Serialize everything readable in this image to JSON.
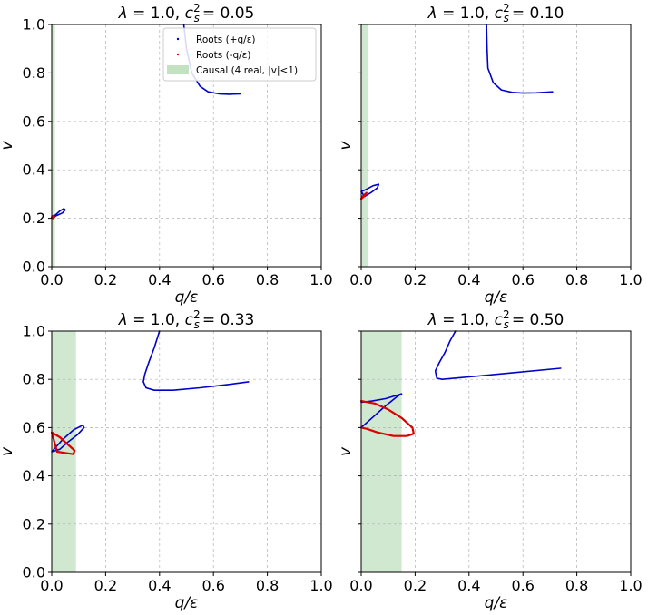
{
  "chart_data": [
    {
      "type": "line",
      "title": "λ = 1.0, c_s² = 0.05",
      "title_parts": {
        "lambda": "λ = 1.0,",
        "cs": "c",
        "sub": "s",
        "sup": "2",
        "value": "= 0.05"
      },
      "xlabel": "q/ε",
      "ylabel": "v",
      "xlim": [
        0,
        1.0
      ],
      "ylim": [
        0,
        1.0
      ],
      "xticks": [
        "0.0",
        "0.2",
        "0.4",
        "0.6",
        "0.8",
        "1.0"
      ],
      "yticks": [
        "0.0",
        "0.2",
        "0.4",
        "0.6",
        "0.8",
        "1.0"
      ],
      "show_yticklabels": true,
      "grid": true,
      "causal_region": [
        0,
        0.012
      ],
      "legend": {
        "placement": "top-center",
        "entries": [
          "Roots (+q/ε)",
          "Roots (-q/ε)",
          "Causal (4 real, |v|<1)"
        ]
      },
      "series": [
        {
          "name": "Roots (+q/ε)",
          "color": "#0000cc",
          "x": [
            0.49,
            0.5,
            0.52,
            0.55,
            0.58,
            0.62,
            0.66,
            0.7
          ],
          "y": [
            1.0,
            0.9,
            0.8,
            0.745,
            0.722,
            0.714,
            0.712,
            0.714
          ]
        },
        {
          "name": "Roots (+q/ε)",
          "color": "#0000cc",
          "x": [
            0.0,
            0.01,
            0.03,
            0.045,
            0.05,
            0.04,
            0.02,
            0.005,
            0.0
          ],
          "y": [
            0.205,
            0.21,
            0.23,
            0.24,
            0.235,
            0.222,
            0.212,
            0.205,
            0.205
          ]
        },
        {
          "name": "Roots (-q/ε)",
          "color": "#dd0000",
          "x": [
            0.0,
            0.005,
            0.01,
            0.005,
            0.0
          ],
          "y": [
            0.205,
            0.2,
            0.205,
            0.21,
            0.205
          ]
        }
      ]
    },
    {
      "type": "line",
      "title": "λ = 1.0, c_s² = 0.10",
      "title_parts": {
        "lambda": "λ = 1.0,",
        "cs": "c",
        "sub": "s",
        "sup": "2",
        "value": "= 0.10"
      },
      "xlabel": "q/ε",
      "ylabel": "v",
      "xlim": [
        0,
        1.0
      ],
      "ylim": [
        0,
        1.0
      ],
      "xticks": [
        "0.0",
        "0.2",
        "0.4",
        "0.6",
        "0.8",
        "1.0"
      ],
      "yticks": [
        "0.0",
        "0.2",
        "0.4",
        "0.6",
        "0.8",
        "1.0"
      ],
      "show_yticklabels": false,
      "grid": true,
      "causal_region": [
        0,
        0.025
      ],
      "series": [
        {
          "name": "Roots (+q/ε)",
          "color": "#0000cc",
          "x": [
            0.465,
            0.467,
            0.47,
            0.49,
            0.52,
            0.56,
            0.6,
            0.65,
            0.71
          ],
          "y": [
            1.0,
            0.9,
            0.82,
            0.76,
            0.73,
            0.72,
            0.717,
            0.718,
            0.722
          ]
        },
        {
          "name": "Roots (+q/ε)",
          "color": "#0000cc",
          "x": [
            0.0,
            0.02,
            0.045,
            0.065,
            0.06,
            0.035,
            0.012,
            0.0
          ],
          "y": [
            0.31,
            0.32,
            0.335,
            0.34,
            0.325,
            0.305,
            0.29,
            0.31
          ]
        },
        {
          "name": "Roots (-q/ε)",
          "color": "#dd0000",
          "x": [
            0.0,
            0.01,
            0.02,
            0.015,
            0.005,
            0.0
          ],
          "y": [
            0.28,
            0.29,
            0.305,
            0.3,
            0.29,
            0.28
          ]
        }
      ]
    },
    {
      "type": "line",
      "title": "λ = 1.0, c_s² = 0.33",
      "title_parts": {
        "lambda": "λ = 1.0,",
        "cs": "c",
        "sub": "s",
        "sup": "2",
        "value": "= 0.33"
      },
      "xlabel": "q/ε",
      "ylabel": "v",
      "xlim": [
        0,
        1.0
      ],
      "ylim": [
        0,
        1.0
      ],
      "xticks": [
        "0.0",
        "0.2",
        "0.4",
        "0.6",
        "0.8",
        "1.0"
      ],
      "yticks": [
        "0.0",
        "0.2",
        "0.4",
        "0.6",
        "0.8",
        "1.0"
      ],
      "show_yticklabels": true,
      "grid": true,
      "causal_region": [
        0,
        0.09
      ],
      "series": [
        {
          "name": "Roots (+q/ε)",
          "color": "#0000cc",
          "x": [
            0.4,
            0.38,
            0.36,
            0.345,
            0.34,
            0.35,
            0.38,
            0.45,
            0.55,
            0.65,
            0.73
          ],
          "y": [
            1.0,
            0.93,
            0.87,
            0.82,
            0.79,
            0.765,
            0.755,
            0.755,
            0.765,
            0.778,
            0.79
          ]
        },
        {
          "name": "Roots (+q/ε)",
          "color": "#0000cc",
          "x": [
            0.0,
            0.04,
            0.08,
            0.115,
            0.12,
            0.095,
            0.06,
            0.03,
            0.0
          ],
          "y": [
            0.5,
            0.55,
            0.59,
            0.61,
            0.6,
            0.57,
            0.54,
            0.51,
            0.5
          ]
        },
        {
          "name": "Roots (-q/ε)",
          "color": "#dd0000",
          "x": [
            0.0,
            0.03,
            0.06,
            0.085,
            0.08,
            0.05,
            0.02,
            0.0
          ],
          "y": [
            0.58,
            0.56,
            0.53,
            0.505,
            0.49,
            0.495,
            0.5,
            0.58
          ]
        }
      ]
    },
    {
      "type": "line",
      "title": "λ = 1.0, c_s² = 0.50",
      "title_parts": {
        "lambda": "λ = 1.0,",
        "cs": "c",
        "sub": "s",
        "sup": "2",
        "value": "= 0.50"
      },
      "xlabel": "q/ε",
      "ylabel": "v",
      "xlim": [
        0,
        1.0
      ],
      "ylim": [
        0,
        1.0
      ],
      "xticks": [
        "0.0",
        "0.2",
        "0.4",
        "0.6",
        "0.8",
        "1.0"
      ],
      "yticks": [
        "0.0",
        "0.2",
        "0.4",
        "0.6",
        "0.8",
        "1.0"
      ],
      "show_yticklabels": false,
      "grid": true,
      "causal_region": [
        0,
        0.15
      ],
      "series": [
        {
          "name": "Roots (+q/ε)",
          "color": "#0000cc",
          "x": [
            0.35,
            0.33,
            0.31,
            0.29,
            0.275,
            0.28,
            0.3,
            0.4,
            0.55,
            0.74
          ],
          "y": [
            1.0,
            0.96,
            0.91,
            0.87,
            0.835,
            0.805,
            0.8,
            0.81,
            0.826,
            0.846
          ]
        },
        {
          "name": "Roots (+q/ε)",
          "color": "#0000cc",
          "x": [
            0.0,
            0.04,
            0.09,
            0.135,
            0.15,
            0.135,
            0.09,
            0.04,
            0.0
          ],
          "y": [
            0.6,
            0.64,
            0.69,
            0.73,
            0.74,
            0.735,
            0.72,
            0.71,
            0.705
          ]
        },
        {
          "name": "Roots (-q/ε)",
          "color": "#dd0000",
          "x": [
            0.0,
            0.05,
            0.1,
            0.15,
            0.19,
            0.195,
            0.17,
            0.12,
            0.06,
            0.02,
            0.0
          ],
          "y": [
            0.71,
            0.7,
            0.675,
            0.64,
            0.6,
            0.575,
            0.565,
            0.565,
            0.58,
            0.595,
            0.6
          ]
        }
      ]
    }
  ]
}
